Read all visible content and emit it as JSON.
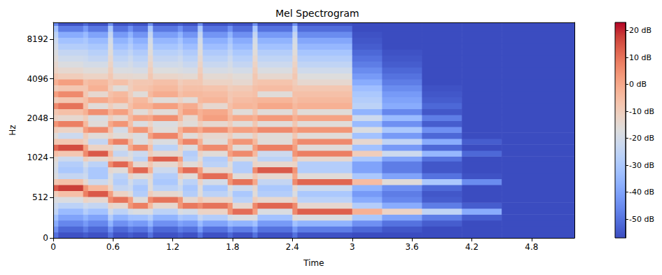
{
  "chart_data": {
    "type": "heatmap",
    "title": "Mel Spectrogram",
    "x_label": "Time",
    "y_label": "Hz",
    "xlim": [
      0,
      5.23
    ],
    "xticks": [
      0,
      0.6,
      1.2,
      1.8,
      2.4,
      3,
      3.6,
      4.2,
      4.8
    ],
    "ylim": [
      0,
      11025
    ],
    "yticks": [
      0,
      512,
      1024,
      2048,
      4096,
      8192
    ],
    "time_bins": [
      0,
      0.05,
      0.3,
      0.35,
      0.55,
      0.6,
      0.75,
      0.8,
      0.95,
      1.0,
      1.25,
      1.3,
      1.45,
      1.5,
      1.75,
      1.8,
      2.0,
      2.05,
      2.4,
      2.45,
      3.0,
      3.3,
      3.7,
      4.1,
      4.5,
      5.23
    ],
    "freq_bins": [
      0,
      75,
      150,
      225,
      300,
      375,
      450,
      525,
      600,
      675,
      750,
      825,
      900,
      975,
      1050,
      1165,
      1295,
      1435,
      1595,
      1770,
      1965,
      2180,
      2420,
      2690,
      2985,
      3310,
      3675,
      4080,
      4530,
      5030,
      5585,
      6200,
      6880,
      7640,
      8480,
      9410,
      10445,
      11025
    ],
    "cells": [
      [
        -50,
        -56,
        -54,
        -56,
        -50,
        -56,
        -54,
        -56,
        -50,
        -56,
        -54,
        -56,
        -50,
        -56,
        -52,
        -56,
        -50,
        -56,
        -50,
        -56,
        -57,
        -57,
        -57,
        -57,
        -57
      ],
      [
        -44,
        -52,
        -48,
        -52,
        -44,
        -52,
        -48,
        -50,
        -44,
        -52,
        -48,
        -50,
        -42,
        -50,
        -44,
        -48,
        -42,
        -50,
        -42,
        -48,
        -52,
        -55,
        -57,
        -57,
        -57
      ],
      [
        -38,
        -46,
        -42,
        -46,
        -36,
        -44,
        -40,
        -42,
        -36,
        -44,
        -40,
        -42,
        -34,
        -40,
        -34,
        -36,
        -32,
        -42,
        -32,
        -36,
        -44,
        -50,
        -54,
        -57,
        -57
      ],
      [
        -32,
        -40,
        -36,
        -40,
        -28,
        -36,
        -32,
        -32,
        -28,
        -36,
        -30,
        -32,
        -24,
        -28,
        -20,
        -18,
        -18,
        -32,
        -16,
        -18,
        -30,
        -40,
        -48,
        -54,
        -57
      ],
      [
        -25,
        -34,
        -28,
        -32,
        -20,
        -26,
        -20,
        -18,
        -18,
        -26,
        -18,
        -20,
        -12,
        -12,
        4,
        11,
        2,
        -18,
        6,
        13,
        -2,
        -12,
        -25,
        -38,
        -57
      ],
      [
        -22,
        -26,
        -22,
        -24,
        -12,
        -14,
        4,
        8,
        -4,
        -14,
        4,
        9,
        6,
        10,
        4,
        -14,
        6,
        12,
        6,
        -14,
        -28,
        -38,
        -48,
        -54,
        -57
      ],
      [
        -18,
        -18,
        -12,
        -14,
        6,
        10,
        2,
        -16,
        6,
        10,
        4,
        -14,
        -8,
        -12,
        -12,
        -26,
        -10,
        -14,
        -10,
        -26,
        -38,
        -46,
        -54,
        -57,
        -57
      ],
      [
        -10,
        -6,
        8,
        14,
        2,
        -12,
        -16,
        -28,
        -10,
        -14,
        -16,
        -28,
        -16,
        -26,
        -20,
        -30,
        -16,
        -28,
        -18,
        -30,
        -42,
        -48,
        -55,
        -57,
        -57
      ],
      [
        14,
        18,
        4,
        -4,
        -12,
        -24,
        -22,
        -30,
        -16,
        -26,
        -22,
        -30,
        -16,
        -30,
        -16,
        -22,
        -14,
        -30,
        -14,
        -22,
        -36,
        -44,
        -52,
        -57,
        -57
      ],
      [
        -8,
        -6,
        -14,
        -22,
        -16,
        -28,
        -20,
        -26,
        -16,
        -30,
        -18,
        -26,
        -12,
        -20,
        4,
        10,
        0,
        -24,
        6,
        12,
        -5,
        -16,
        -30,
        -45,
        -57
      ],
      [
        -18,
        -24,
        -22,
        -30,
        -18,
        -26,
        -12,
        -16,
        -14,
        -28,
        -12,
        -16,
        6,
        11,
        2,
        -16,
        -8,
        -14,
        0,
        -16,
        -30,
        -40,
        -50,
        -56,
        -57
      ],
      [
        -20,
        -30,
        -24,
        -30,
        -14,
        -16,
        4,
        12,
        -2,
        -22,
        4,
        11,
        2,
        -14,
        -14,
        -28,
        6,
        14,
        4,
        -28,
        -40,
        -48,
        -55,
        -57,
        -57
      ],
      [
        -18,
        -28,
        -20,
        -26,
        6,
        12,
        2,
        -14,
        -8,
        -14,
        -6,
        -16,
        -12,
        -26,
        -16,
        -28,
        -12,
        -14,
        -12,
        -28,
        -40,
        -48,
        -55,
        -57,
        -57
      ],
      [
        -15,
        -22,
        -10,
        -14,
        -10,
        -14,
        -16,
        -26,
        6,
        13,
        2,
        -26,
        -16,
        -28,
        -8,
        -16,
        -14,
        -26,
        -6,
        -14,
        -30,
        -40,
        -50,
        -57,
        -57
      ],
      [
        -6,
        -8,
        6,
        14,
        -4,
        -24,
        -18,
        -22,
        -10,
        -14,
        -14,
        -28,
        -12,
        -16,
        2,
        6,
        -4,
        -22,
        4,
        8,
        -10,
        -22,
        -35,
        -52,
        -57
      ],
      [
        12,
        16,
        2,
        -12,
        -12,
        -18,
        0,
        6,
        -6,
        -26,
        -12,
        -18,
        2,
        6,
        -2,
        -16,
        2,
        8,
        2,
        -16,
        -32,
        -42,
        -52,
        -57,
        -57
      ],
      [
        -8,
        -8,
        -12,
        -24,
        2,
        8,
        -4,
        -18,
        -12,
        -18,
        0,
        7,
        -2,
        -16,
        -2,
        4,
        -4,
        -16,
        0,
        6,
        -14,
        -25,
        -38,
        -54,
        -57
      ],
      [
        -16,
        -22,
        -10,
        -16,
        -12,
        -16,
        -14,
        -18,
        2,
        7,
        -4,
        -16,
        -10,
        -14,
        -10,
        -16,
        -10,
        -16,
        -8,
        -16,
        -32,
        -42,
        -52,
        -57,
        -57
      ],
      [
        -10,
        -12,
        2,
        6,
        -6,
        -20,
        -2,
        4,
        -6,
        -16,
        -2,
        4,
        0,
        5,
        -2,
        2,
        0,
        6,
        0,
        4,
        -18,
        -30,
        -44,
        -57,
        -57
      ],
      [
        4,
        8,
        -4,
        -16,
        0,
        4,
        -6,
        -18,
        -12,
        -18,
        -12,
        -16,
        -10,
        -14,
        -10,
        -16,
        -8,
        -16,
        -8,
        -16,
        -34,
        -44,
        -54,
        -57,
        -57
      ],
      [
        -12,
        -14,
        -10,
        -18,
        -10,
        -14,
        -4,
        1,
        0,
        5,
        -4,
        -14,
        -2,
        2,
        -4,
        0,
        -2,
        3,
        -2,
        1,
        -22,
        -34,
        -48,
        -57,
        -57
      ],
      [
        -8,
        -6,
        -2,
        5,
        -2,
        2,
        -6,
        -16,
        -10,
        -16,
        -4,
        2,
        -2,
        0,
        -6,
        -16,
        -8,
        -16,
        -6,
        -16,
        -36,
        -46,
        -55,
        -57,
        -57
      ],
      [
        6,
        10,
        -6,
        -16,
        -10,
        -14,
        -6,
        -2,
        -2,
        2,
        -4,
        -1,
        -8,
        -14,
        -6,
        -3,
        -4,
        0,
        -4,
        -2,
        -26,
        -38,
        -52,
        -57,
        -57
      ],
      [
        -10,
        -8,
        -6,
        0,
        -4,
        -2,
        -8,
        -4,
        -10,
        -16,
        -12,
        -16,
        -4,
        -3,
        -8,
        -5,
        -4,
        -3,
        -6,
        -4,
        -28,
        -40,
        -54,
        -57,
        -57
      ],
      [
        2,
        6,
        -8,
        -14,
        -6,
        -4,
        -10,
        -16,
        -4,
        -1,
        -6,
        -4,
        -4,
        -5,
        -8,
        -7,
        -6,
        -16,
        -6,
        -6,
        -30,
        -42,
        -55,
        -57,
        -57
      ],
      [
        -10,
        -8,
        -8,
        -2,
        -10,
        -16,
        -10,
        -7,
        -6,
        -4,
        -8,
        -6,
        -6,
        -7,
        -10,
        -9,
        -6,
        -5,
        -8,
        -8,
        -33,
        -45,
        -56,
        -57,
        -57
      ],
      [
        -2,
        2,
        -6,
        -4,
        -8,
        -6,
        -10,
        -8,
        -8,
        -6,
        -10,
        -8,
        -8,
        -12,
        -12,
        -14,
        -8,
        -7,
        -10,
        -14,
        -38,
        -48,
        -57,
        -57,
        -57
      ],
      [
        -8,
        -10,
        -12,
        -12,
        -8,
        -14,
        -14,
        -15,
        -8,
        -13,
        -14,
        -15,
        -8,
        -15,
        -14,
        -16,
        -8,
        -14,
        -8,
        -17,
        -42,
        -50,
        -57,
        -57,
        -57
      ],
      [
        -12,
        -14,
        -16,
        -16,
        -10,
        -18,
        -18,
        -19,
        -10,
        -17,
        -18,
        -19,
        -10,
        -19,
        -18,
        -20,
        -10,
        -18,
        -10,
        -21,
        -45,
        -52,
        -57,
        -57,
        -57
      ],
      [
        -14,
        -18,
        -20,
        -20,
        -12,
        -22,
        -20,
        -23,
        -12,
        -21,
        -20,
        -23,
        -12,
        -23,
        -20,
        -24,
        -12,
        -22,
        -12,
        -25,
        -48,
        -54,
        -57,
        -57,
        -57
      ],
      [
        -16,
        -21,
        -22,
        -24,
        -14,
        -25,
        -22,
        -26,
        -14,
        -24,
        -22,
        -26,
        -14,
        -26,
        -22,
        -27,
        -14,
        -25,
        -14,
        -28,
        -50,
        -55,
        -57,
        -57,
        -57
      ],
      [
        -18,
        -24,
        -24,
        -27,
        -16,
        -28,
        -25,
        -29,
        -16,
        -27,
        -25,
        -29,
        -16,
        -29,
        -25,
        -30,
        -16,
        -28,
        -16,
        -31,
        -52,
        -56,
        -57,
        -57,
        -57
      ],
      [
        -20,
        -28,
        -28,
        -30,
        -18,
        -32,
        -28,
        -33,
        -18,
        -31,
        -28,
        -33,
        -18,
        -33,
        -28,
        -34,
        -18,
        -32,
        -18,
        -35,
        -54,
        -57,
        -57,
        -57,
        -57
      ],
      [
        -22,
        -32,
        -30,
        -34,
        -20,
        -36,
        -31,
        -37,
        -20,
        -35,
        -31,
        -37,
        -20,
        -37,
        -31,
        -38,
        -20,
        -36,
        -20,
        -39,
        -55,
        -57,
        -57,
        -57,
        -57
      ],
      [
        -26,
        -38,
        -34,
        -40,
        -24,
        -42,
        -36,
        -43,
        -24,
        -41,
        -36,
        -43,
        -24,
        -43,
        -36,
        -44,
        -24,
        -42,
        -24,
        -45,
        -56,
        -57,
        -57,
        -57,
        -57
      ],
      [
        -32,
        -48,
        -42,
        -49,
        -30,
        -50,
        -44,
        -50,
        -30,
        -49,
        -44,
        -50,
        -30,
        -50,
        -44,
        -51,
        -30,
        -50,
        -30,
        -51,
        -57,
        -57,
        -57,
        -57,
        -57
      ],
      [
        -46,
        -56,
        -52,
        -56,
        -44,
        -56,
        -54,
        -56,
        -44,
        -56,
        -54,
        -56,
        -44,
        -56,
        -54,
        -56,
        -44,
        -56,
        -44,
        -56,
        -57,
        -57,
        -57,
        -57,
        -57
      ]
    ],
    "colorbar": {
      "range": [
        -57,
        23
      ],
      "ticks": [
        {
          "value": -50,
          "label": "-50 dB"
        },
        {
          "value": -40,
          "label": "-40 dB"
        },
        {
          "value": -30,
          "label": "-30 dB"
        },
        {
          "value": -20,
          "label": "-20 dB"
        },
        {
          "value": -10,
          "label": "-10 dB"
        },
        {
          "value": 0,
          "label": "0 dB"
        },
        {
          "value": 10,
          "label": "10 dB"
        },
        {
          "value": 20,
          "label": "20 dB"
        }
      ]
    }
  }
}
